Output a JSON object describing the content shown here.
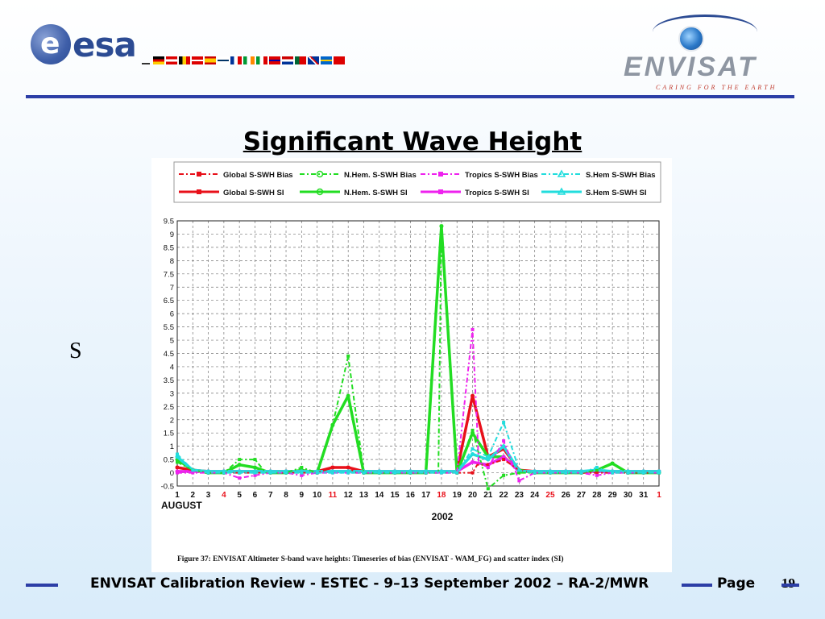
{
  "slide": {
    "title": "Significant Wave Height",
    "side_letter": "S",
    "footer_text": "ENVISAT Calibration Review - ESTEC - 9–13 September 2002 – RA-2/MWR",
    "page_label": "Page",
    "page_number": "19"
  },
  "logos": {
    "esa": {
      "text": "esa",
      "disc_letter": "e",
      "color": "#2c4b93"
    },
    "envisat": {
      "text": "ENVISAT",
      "tagline": "CARING FOR THE EARTH",
      "text_color": "#8e96a2",
      "tagline_color": "#c0392b"
    }
  },
  "colors": {
    "rule": "#2c3ea6"
  },
  "chart_data": {
    "type": "line",
    "caption": "Figure 37:  ENVISAT Altimeter S-band wave heights: Timeseries of bias (ENVISAT - WAM_FG) and scatter index (SI)",
    "xlabel": "2002",
    "month_label": "AUGUST",
    "x_ticks": [
      "1",
      "2",
      "3",
      "4",
      "5",
      "6",
      "7",
      "8",
      "9",
      "10",
      "11",
      "12",
      "13",
      "14",
      "15",
      "16",
      "17",
      "18",
      "19",
      "20",
      "21",
      "22",
      "23",
      "24",
      "25",
      "26",
      "27",
      "28",
      "29",
      "30",
      "31",
      "1"
    ],
    "x_ticks_red": [
      "4",
      "11",
      "18",
      "25",
      "1"
    ],
    "y_ticks": [
      "-0.5",
      "0",
      "0.5",
      "1",
      "1.5",
      "2",
      "2.5",
      "3",
      "3.5",
      "4",
      "4.5",
      "5",
      "5.5",
      "6",
      "6.5",
      "7",
      "7.5",
      "8",
      "8.5",
      "9",
      "9.5"
    ],
    "ylim": [
      -0.5,
      9.5
    ],
    "grid": true,
    "legend_position": "top",
    "legend": [
      {
        "label": "Global S-SWH Bias",
        "color": "#e8101a",
        "dash": true,
        "marker": "square"
      },
      {
        "label": "N.Hem. S-SWH Bias",
        "color": "#22dd22",
        "dash": true,
        "marker": "circle"
      },
      {
        "label": "Tropics S-SWH Bias",
        "color": "#ee22ee",
        "dash": true,
        "marker": "square"
      },
      {
        "label": "S.Hem S-SWH Bias",
        "color": "#22dddd",
        "dash": true,
        "marker": "triangle"
      },
      {
        "label": "Global S-SWH SI",
        "color": "#e8101a",
        "dash": false,
        "marker": "square"
      },
      {
        "label": "N.Hem. S-SWH SI",
        "color": "#22dd22",
        "dash": false,
        "marker": "circle"
      },
      {
        "label": "Tropics S-SWH SI",
        "color": "#ee22ee",
        "dash": false,
        "marker": "square"
      },
      {
        "label": "S.Hem S-SWH  SI",
        "color": "#22dddd",
        "dash": false,
        "marker": "triangle"
      }
    ],
    "series": [
      {
        "name": "Global S-SWH Bias",
        "color": "#e8101a",
        "dash": true,
        "points": [
          [
            1,
            0.2
          ],
          [
            2,
            0.1
          ],
          [
            2.3,
            0.05
          ],
          [
            3,
            0
          ],
          [
            4,
            0
          ],
          [
            5,
            0
          ],
          [
            6,
            0
          ],
          [
            7,
            0
          ],
          [
            8,
            0
          ],
          [
            9,
            0
          ],
          [
            10,
            0
          ],
          [
            11,
            0.2
          ],
          [
            12,
            0.2
          ],
          [
            12.5,
            0
          ],
          [
            13,
            0
          ],
          [
            14,
            0
          ],
          [
            15,
            0
          ],
          [
            16,
            0
          ],
          [
            17,
            0
          ],
          [
            18,
            0
          ],
          [
            19,
            0
          ],
          [
            20,
            0
          ],
          [
            20.3,
            0.3
          ],
          [
            21,
            0.3
          ],
          [
            22,
            0.5
          ],
          [
            23,
            0.1
          ],
          [
            24,
            0
          ],
          [
            25,
            0
          ],
          [
            26,
            0
          ],
          [
            27,
            0
          ],
          [
            28,
            0
          ],
          [
            29,
            0
          ],
          [
            30,
            0
          ],
          [
            31,
            0
          ],
          [
            32,
            0
          ]
        ]
      },
      {
        "name": "N.Hem. S-SWH Bias",
        "color": "#22dd22",
        "dash": true,
        "points": [
          [
            1,
            0.4
          ],
          [
            2,
            0.1
          ],
          [
            3,
            0
          ],
          [
            4,
            0
          ],
          [
            5,
            0.5
          ],
          [
            6,
            0.5
          ],
          [
            6.7,
            0
          ],
          [
            7,
            0
          ],
          [
            8,
            0
          ],
          [
            9,
            0.2
          ],
          [
            10,
            0
          ],
          [
            11,
            1.8
          ],
          [
            12,
            4.4
          ],
          [
            13,
            0
          ],
          [
            14,
            0
          ],
          [
            15,
            0
          ],
          [
            16,
            0
          ],
          [
            17,
            0
          ],
          [
            17.8,
            0
          ],
          [
            18,
            9.3
          ],
          [
            19,
            0
          ],
          [
            20,
            1.6
          ],
          [
            21,
            -0.6
          ],
          [
            22,
            -0.1
          ],
          [
            23,
            0
          ],
          [
            24,
            0
          ],
          [
            25,
            0
          ],
          [
            26,
            0
          ],
          [
            27,
            0
          ],
          [
            28,
            0.1
          ],
          [
            29,
            0.35
          ],
          [
            30,
            0
          ],
          [
            31,
            0
          ],
          [
            32,
            0
          ]
        ]
      },
      {
        "name": "Tropics S-SWH Bias",
        "color": "#ee22ee",
        "dash": true,
        "points": [
          [
            1,
            0
          ],
          [
            2,
            0
          ],
          [
            3,
            0
          ],
          [
            4,
            0
          ],
          [
            5,
            -0.2
          ],
          [
            6,
            -0.1
          ],
          [
            7,
            0
          ],
          [
            8,
            0
          ],
          [
            9,
            -0.1
          ],
          [
            10,
            0
          ],
          [
            11,
            0
          ],
          [
            12,
            0
          ],
          [
            13,
            0
          ],
          [
            14,
            0
          ],
          [
            15,
            0
          ],
          [
            16,
            0
          ],
          [
            17,
            0
          ],
          [
            18,
            0
          ],
          [
            19,
            0
          ],
          [
            20,
            5.4
          ],
          [
            20.4,
            0.4
          ],
          [
            21,
            0.2
          ],
          [
            22,
            1.2
          ],
          [
            23,
            -0.3
          ],
          [
            24,
            0
          ],
          [
            25,
            0
          ],
          [
            26,
            0
          ],
          [
            27,
            0
          ],
          [
            28,
            -0.1
          ],
          [
            29,
            0
          ],
          [
            30,
            0
          ],
          [
            31,
            0
          ],
          [
            32,
            0
          ]
        ]
      },
      {
        "name": "S.Hem S-SWH Bias",
        "color": "#22dddd",
        "dash": true,
        "points": [
          [
            1,
            0.7
          ],
          [
            2,
            0.1
          ],
          [
            3,
            0
          ],
          [
            4,
            0
          ],
          [
            5,
            0
          ],
          [
            6,
            0
          ],
          [
            7,
            0
          ],
          [
            8,
            0
          ],
          [
            9,
            0
          ],
          [
            10,
            0
          ],
          [
            11,
            0
          ],
          [
            12,
            0
          ],
          [
            13,
            0
          ],
          [
            14,
            0
          ],
          [
            15,
            0
          ],
          [
            16,
            0
          ],
          [
            17,
            0
          ],
          [
            18,
            0
          ],
          [
            19,
            0
          ],
          [
            20,
            0.9
          ],
          [
            21,
            0.6
          ],
          [
            22,
            1.9
          ],
          [
            23,
            0.1
          ],
          [
            24,
            0
          ],
          [
            25,
            0
          ],
          [
            26,
            0
          ],
          [
            27,
            0
          ],
          [
            28,
            0.2
          ],
          [
            29,
            0
          ],
          [
            30,
            0
          ],
          [
            31,
            0
          ],
          [
            32,
            0
          ]
        ]
      },
      {
        "name": "Global S-SWH SI",
        "color": "#e8101a",
        "dash": false,
        "points": [
          [
            1,
            0.2
          ],
          [
            2,
            0.1
          ],
          [
            3,
            0.05
          ],
          [
            4,
            0.05
          ],
          [
            5,
            0.05
          ],
          [
            6,
            0.05
          ],
          [
            7,
            0.05
          ],
          [
            8,
            0.05
          ],
          [
            9,
            0.05
          ],
          [
            10,
            0.05
          ],
          [
            11,
            0.2
          ],
          [
            12,
            0.2
          ],
          [
            13,
            0.05
          ],
          [
            14,
            0.05
          ],
          [
            15,
            0.05
          ],
          [
            16,
            0.05
          ],
          [
            17,
            0.05
          ],
          [
            18,
            0.05
          ],
          [
            19,
            0.05
          ],
          [
            20,
            2.9
          ],
          [
            21,
            0.6
          ],
          [
            22,
            0.9
          ],
          [
            23,
            0.1
          ],
          [
            24,
            0.05
          ],
          [
            25,
            0.05
          ],
          [
            26,
            0.05
          ],
          [
            27,
            0.05
          ],
          [
            28,
            0.05
          ],
          [
            29,
            0.05
          ],
          [
            30,
            0.05
          ],
          [
            31,
            0.05
          ],
          [
            32,
            0.05
          ]
        ]
      },
      {
        "name": "N.Hem. S-SWH SI",
        "color": "#22dd22",
        "dash": false,
        "points": [
          [
            1,
            0.5
          ],
          [
            2,
            0.1
          ],
          [
            3,
            0
          ],
          [
            4,
            0
          ],
          [
            5,
            0.3
          ],
          [
            6,
            0.2
          ],
          [
            7,
            0
          ],
          [
            8,
            0
          ],
          [
            9,
            0.1
          ],
          [
            10,
            0
          ],
          [
            11,
            1.8
          ],
          [
            12,
            2.9
          ],
          [
            13,
            0
          ],
          [
            14,
            0
          ],
          [
            15,
            0
          ],
          [
            16,
            0
          ],
          [
            17,
            0
          ],
          [
            18,
            9.3
          ],
          [
            19,
            0
          ],
          [
            20,
            1.5
          ],
          [
            21,
            0.6
          ],
          [
            22,
            0.6
          ],
          [
            23,
            0.1
          ],
          [
            24,
            0
          ],
          [
            25,
            0
          ],
          [
            26,
            0
          ],
          [
            27,
            0
          ],
          [
            28,
            0.1
          ],
          [
            29,
            0.35
          ],
          [
            30,
            0
          ],
          [
            31,
            0
          ],
          [
            32,
            0
          ]
        ]
      },
      {
        "name": "Tropics S-SWH SI",
        "color": "#ee22ee",
        "dash": false,
        "points": [
          [
            1,
            0.05
          ],
          [
            2,
            0.05
          ],
          [
            3,
            0.05
          ],
          [
            4,
            0.05
          ],
          [
            5,
            0.05
          ],
          [
            6,
            0.05
          ],
          [
            7,
            0.05
          ],
          [
            8,
            0.05
          ],
          [
            9,
            0.05
          ],
          [
            10,
            0.05
          ],
          [
            11,
            0.05
          ],
          [
            12,
            0.05
          ],
          [
            13,
            0.05
          ],
          [
            14,
            0.05
          ],
          [
            15,
            0.05
          ],
          [
            16,
            0.05
          ],
          [
            17,
            0.05
          ],
          [
            18,
            0.05
          ],
          [
            19,
            0.05
          ],
          [
            20,
            0.4
          ],
          [
            21,
            0.3
          ],
          [
            22,
            0.6
          ],
          [
            23,
            0.05
          ],
          [
            24,
            0.05
          ],
          [
            25,
            0.05
          ],
          [
            26,
            0.05
          ],
          [
            27,
            0.05
          ],
          [
            28,
            0.05
          ],
          [
            29,
            0.05
          ],
          [
            30,
            0.05
          ],
          [
            31,
            0.05
          ],
          [
            32,
            0.05
          ]
        ]
      },
      {
        "name": "S.Hem S-SWH  SI",
        "color": "#22dddd",
        "dash": false,
        "points": [
          [
            1,
            0.6
          ],
          [
            2,
            0.1
          ],
          [
            3,
            0.05
          ],
          [
            4,
            0.05
          ],
          [
            5,
            0.05
          ],
          [
            6,
            0.05
          ],
          [
            7,
            0.05
          ],
          [
            8,
            0.05
          ],
          [
            9,
            0.05
          ],
          [
            10,
            0.05
          ],
          [
            11,
            0.05
          ],
          [
            12,
            0.05
          ],
          [
            13,
            0.05
          ],
          [
            14,
            0.05
          ],
          [
            15,
            0.05
          ],
          [
            16,
            0.05
          ],
          [
            17,
            0.05
          ],
          [
            18,
            0.05
          ],
          [
            19,
            0.05
          ],
          [
            20,
            0.7
          ],
          [
            21,
            0.5
          ],
          [
            22,
            1.0
          ],
          [
            23,
            0.05
          ],
          [
            24,
            0.05
          ],
          [
            25,
            0.05
          ],
          [
            26,
            0.05
          ],
          [
            27,
            0.05
          ],
          [
            28,
            0.1
          ],
          [
            29,
            0.05
          ],
          [
            30,
            0.05
          ],
          [
            31,
            0.05
          ],
          [
            32,
            0.05
          ]
        ]
      }
    ]
  }
}
